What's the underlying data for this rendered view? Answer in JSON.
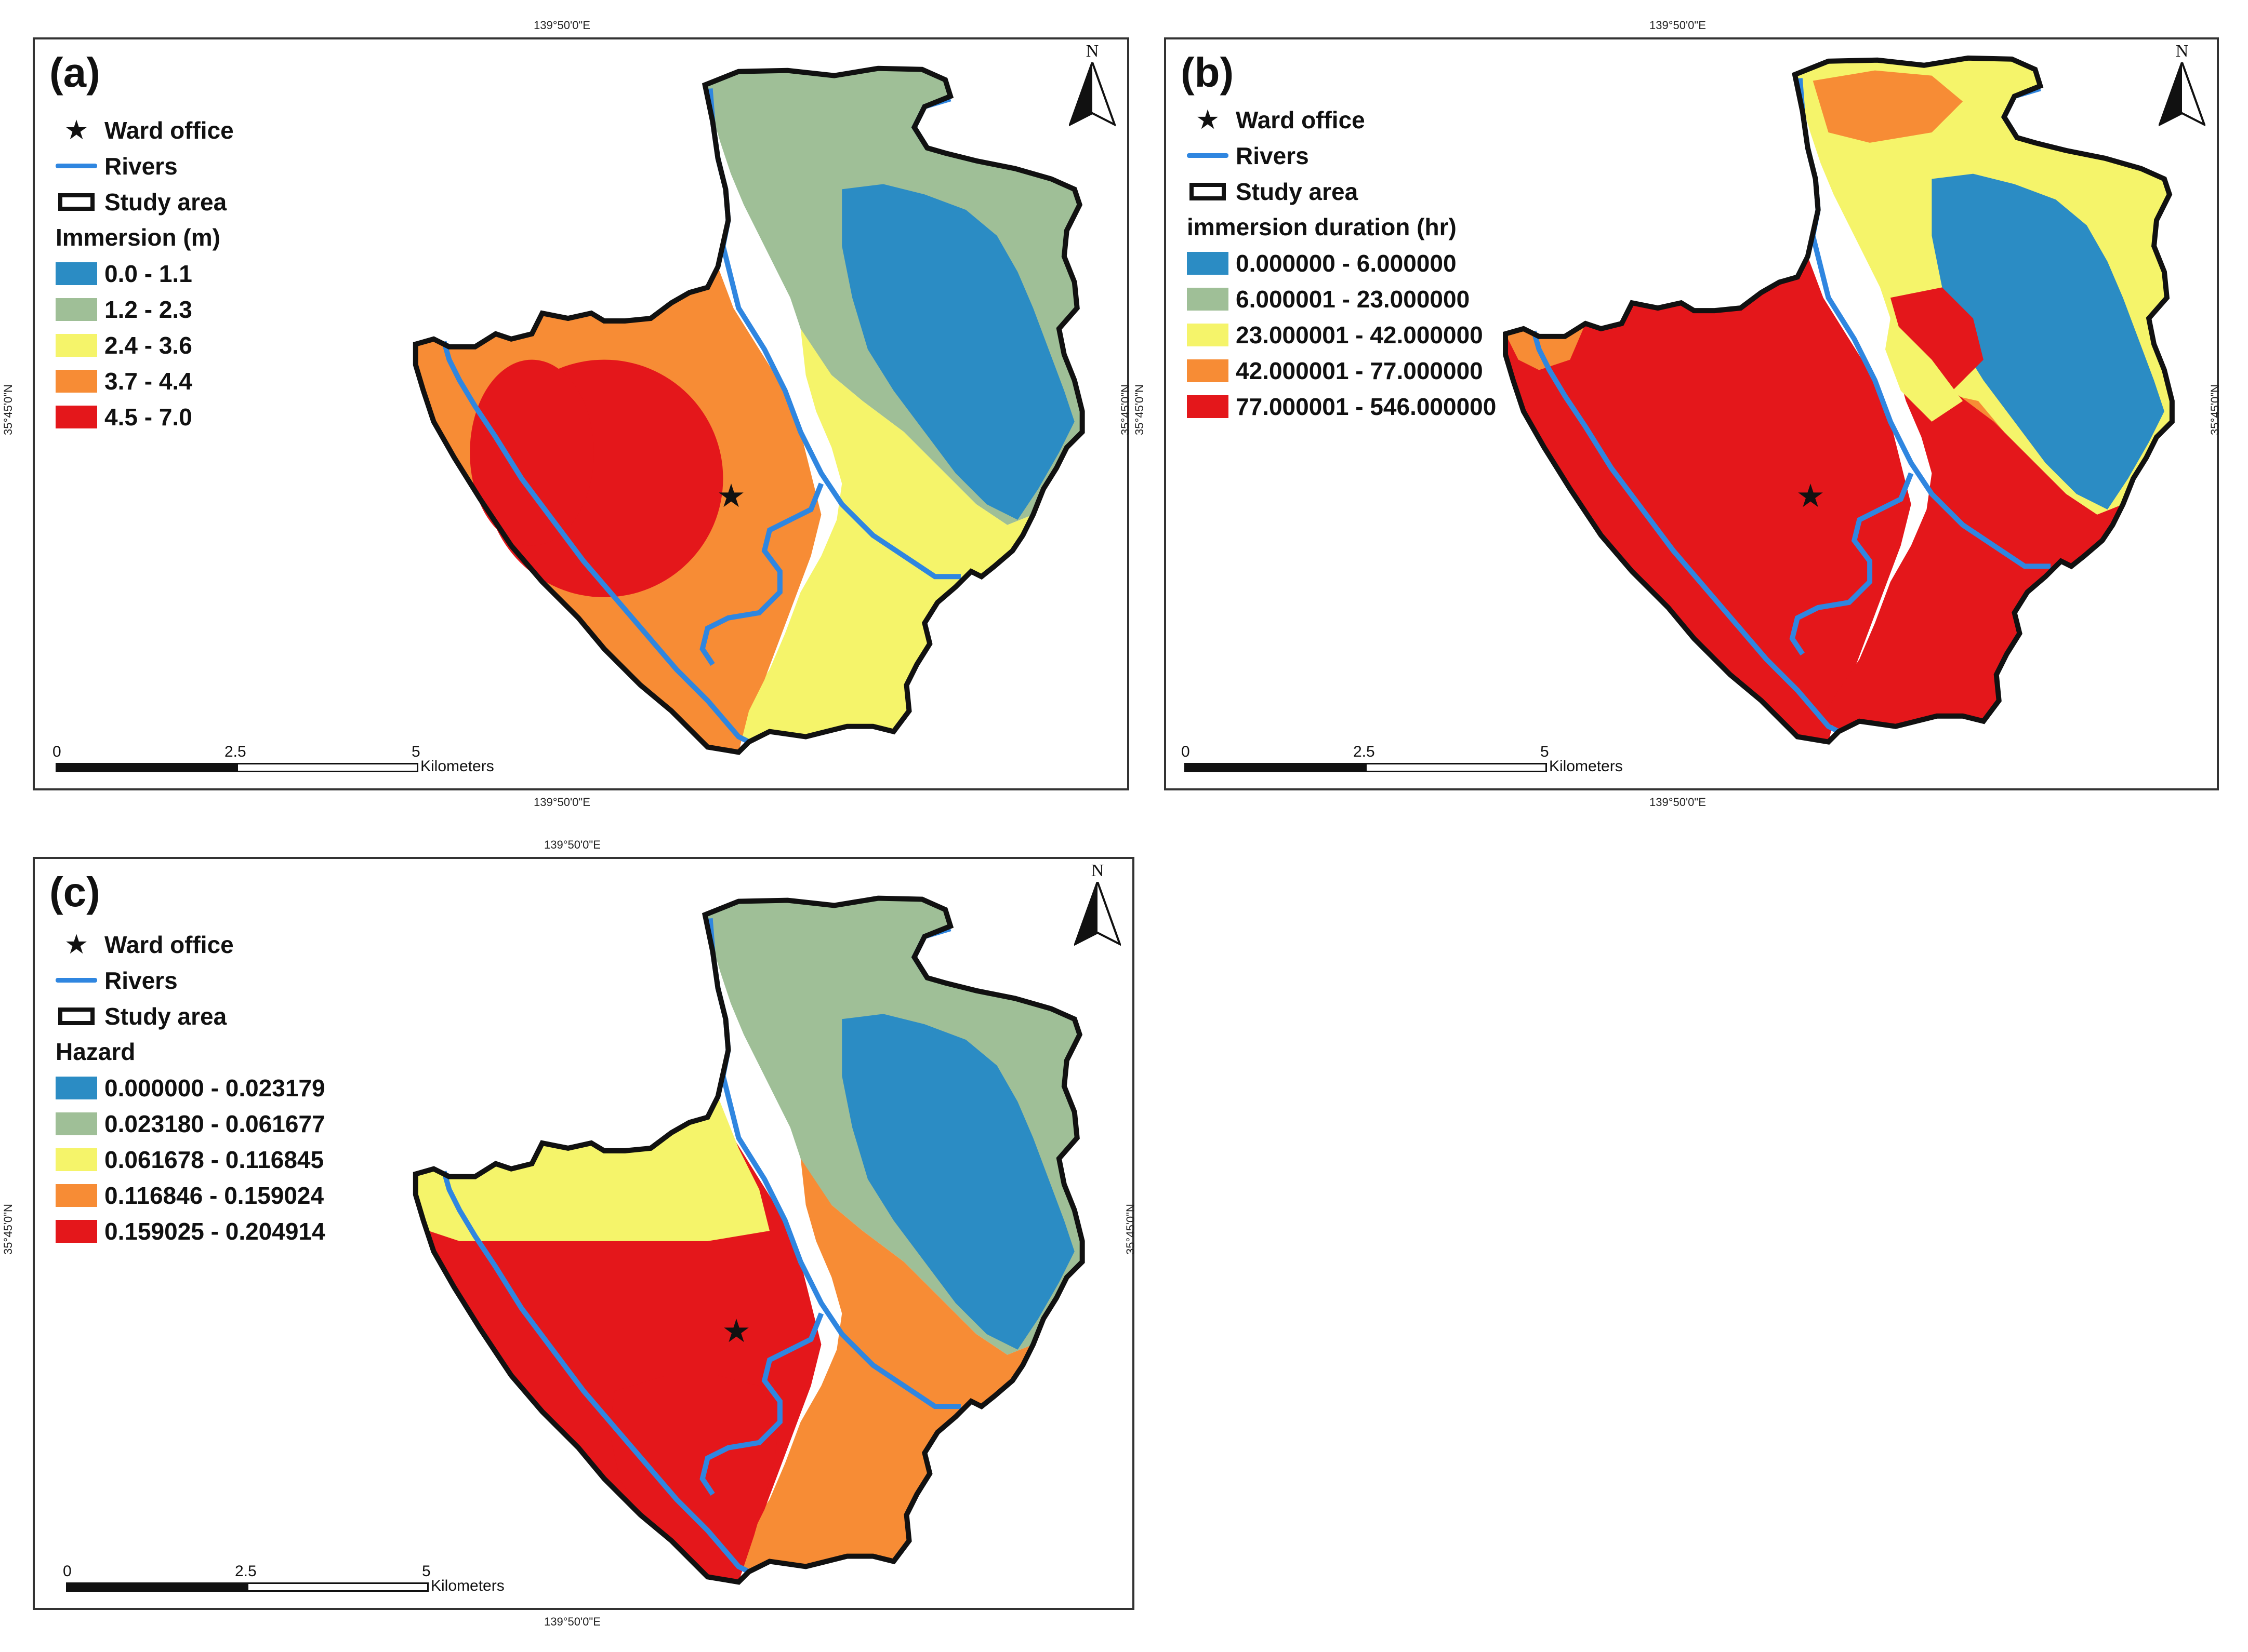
{
  "common": {
    "legend_ward_office": "Ward office",
    "legend_rivers": "Rivers",
    "legend_study_area": "Study area",
    "coord_longitude": "139°50'0\"E",
    "coord_latitude": "35°45'0\"N",
    "north_label": "N",
    "scale_0": "0",
    "scale_mid": "2.5",
    "scale_end": "5",
    "scale_unit": "Kilometers",
    "colors": {
      "blue": "#2b8cc4",
      "green": "#9fbf97",
      "yellow": "#f5f46a",
      "orange": "#f78c35",
      "red": "#e4171b",
      "river": "#2f86e0"
    }
  },
  "panels": [
    {
      "label": "(a)",
      "legend_title": "Immersion (m)",
      "classes": [
        {
          "text": "0.0 - 1.1",
          "color": "#2b8cc4"
        },
        {
          "text": "1.2 - 2.3",
          "color": "#9fbf97"
        },
        {
          "text": "2.4 - 3.6",
          "color": "#f5f46a"
        },
        {
          "text": "3.7 - 4.4",
          "color": "#f78c35"
        },
        {
          "text": "4.5 - 7.0",
          "color": "#e4171b"
        }
      ]
    },
    {
      "label": "(b)",
      "legend_title": "immersion duration (hr)",
      "classes": [
        {
          "text": "0.000000 - 6.000000",
          "color": "#2b8cc4"
        },
        {
          "text": "6.000001 - 23.000000",
          "color": "#9fbf97"
        },
        {
          "text": "23.000001 - 42.000000",
          "color": "#f5f46a"
        },
        {
          "text": "42.000001 - 77.000000",
          "color": "#f78c35"
        },
        {
          "text": "77.000001 - 546.000000",
          "color": "#e4171b"
        }
      ]
    },
    {
      "label": "(c)",
      "legend_title": "Hazard",
      "classes": [
        {
          "text": "0.000000 - 0.023179",
          "color": "#2b8cc4"
        },
        {
          "text": "0.023180 - 0.061677",
          "color": "#9fbf97"
        },
        {
          "text": "0.061678 - 0.116845",
          "color": "#f5f46a"
        },
        {
          "text": "0.116846 - 0.159024",
          "color": "#f78c35"
        },
        {
          "text": "0.159025 - 0.204914",
          "color": "#e4171b"
        }
      ]
    }
  ]
}
